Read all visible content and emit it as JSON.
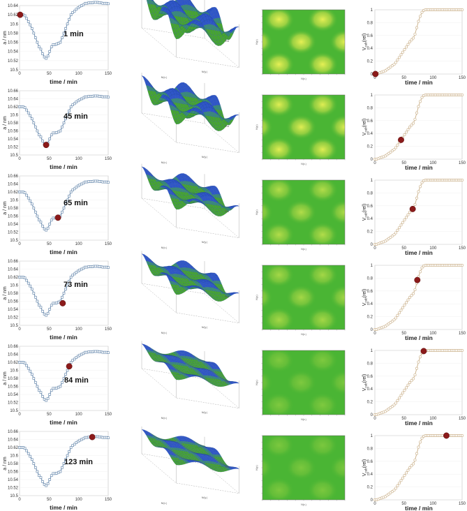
{
  "colors": {
    "lattice_line": "#5b7fa6",
    "volume_line": "#c8ad85",
    "marker": "#8b1a1a",
    "surface_green": "#46a52f",
    "surface_blue": "#2f56c8",
    "map_green": "#4ab534",
    "map_yellow": "#e6f055"
  },
  "labels": {
    "lattice_ylabel": "a / nm",
    "lattice_xlabel": "time / min",
    "volume_ylabel": "V",
    "volume_ylabel_sub": "cub",
    "volume_ylabel_tail": "(rel)",
    "volume_xlabel": "time / min",
    "surface_axis_x": "N/(x.)",
    "surface_axis_y": "N/(y.)",
    "surface_axis_z": "Φ/a",
    "map_axis_x": "N(x.)",
    "map_axis_y": "N(y.)"
  },
  "chart_data": [
    {
      "type": "line",
      "id": "lattice_parameter",
      "xlabel": "time / min",
      "ylabel": "a / nm",
      "xlim": [
        0,
        150
      ],
      "xticks": [
        0,
        50,
        100,
        150
      ],
      "ylim_rows": [
        [
          10.5,
          10.64
        ],
        [
          10.5,
          10.66
        ],
        [
          10.5,
          10.66
        ],
        [
          10.5,
          10.66
        ],
        [
          10.5,
          10.66
        ],
        [
          10.5,
          10.66
        ]
      ],
      "yticks_rows": [
        [
          "10.5",
          "10.52",
          "10.54",
          "10.56",
          "10.58",
          "10.6",
          "10.62",
          "10.64"
        ],
        [
          "10.5",
          "10.52",
          "10.54",
          "10.56",
          "10.58",
          "10.6",
          "10.62",
          "10.64",
          "10.66"
        ],
        [
          "10.5",
          "10.52",
          "10.54",
          "10.56",
          "10.58",
          "10.6",
          "10.62",
          "10.64",
          "10.66"
        ],
        [
          "10.5",
          "10.52",
          "10.54",
          "10.56",
          "10.58",
          "10.6",
          "10.62",
          "10.64",
          "10.66"
        ],
        [
          "10.5",
          "10.52",
          "10.54",
          "10.56",
          "10.58",
          "10.6",
          "10.62",
          "10.64",
          "10.66"
        ],
        [
          "10.5",
          "10.52",
          "10.54",
          "10.56",
          "10.58",
          "10.6",
          "10.62",
          "10.64",
          "10.66"
        ]
      ],
      "x": [
        0,
        3,
        6,
        9,
        12,
        15,
        18,
        21,
        24,
        27,
        30,
        33,
        36,
        39,
        42,
        45,
        48,
        51,
        54,
        57,
        60,
        63,
        66,
        69,
        72,
        75,
        78,
        81,
        84,
        87,
        90,
        93,
        96,
        99,
        102,
        105,
        108,
        111,
        114,
        117,
        120,
        123,
        126,
        129,
        132,
        135,
        138,
        141,
        144,
        147,
        150
      ],
      "y": [
        10.62,
        10.62,
        10.62,
        10.618,
        10.612,
        10.605,
        10.598,
        10.59,
        10.58,
        10.57,
        10.56,
        10.55,
        10.545,
        10.535,
        10.528,
        10.525,
        10.53,
        10.54,
        10.55,
        10.555,
        10.555,
        10.556,
        10.558,
        10.56,
        10.57,
        10.58,
        10.59,
        10.6,
        10.61,
        10.62,
        10.625,
        10.628,
        10.632,
        10.635,
        10.638,
        10.64,
        10.642,
        10.645,
        10.645,
        10.646,
        10.646,
        10.646,
        10.647,
        10.647,
        10.647,
        10.646,
        10.646,
        10.645,
        10.645,
        10.645,
        10.644
      ]
    },
    {
      "type": "scatter",
      "id": "current_time_markers",
      "points": [
        {
          "time_label": "1 min",
          "x": 1,
          "y_lattice": 10.62,
          "y_volume": 0.0
        },
        {
          "time_label": "45 min",
          "x": 45,
          "y_lattice": 10.525,
          "y_volume": 0.3
        },
        {
          "time_label": "65 min",
          "x": 65,
          "y_lattice": 10.556,
          "y_volume": 0.55
        },
        {
          "time_label": "73 min",
          "x": 73,
          "y_lattice": 10.555,
          "y_volume": 0.77
        },
        {
          "time_label": "84 min",
          "x": 84,
          "y_lattice": 10.61,
          "y_volume": 0.99
        },
        {
          "time_label": "123 min",
          "x": 123,
          "y_lattice": 10.646,
          "y_volume": 1.0
        }
      ]
    },
    {
      "type": "line",
      "id": "cubic_volume_fraction",
      "xlabel": "time / min",
      "ylabel": "V_cub(rel)",
      "xlim": [
        0,
        150
      ],
      "ylim": [
        0,
        1
      ],
      "xticks": [
        0,
        50,
        100,
        150
      ],
      "yticks": [
        "0",
        "0.2",
        "0.4",
        "0.6",
        "0.8",
        "1"
      ],
      "x": [
        0,
        3,
        6,
        9,
        12,
        15,
        18,
        21,
        24,
        27,
        30,
        33,
        36,
        39,
        42,
        45,
        48,
        51,
        54,
        57,
        60,
        63,
        66,
        69,
        72,
        75,
        78,
        81,
        84,
        87,
        90,
        93,
        96,
        99,
        102,
        105,
        108,
        111,
        114,
        117,
        120,
        123,
        126,
        129,
        132,
        135,
        138,
        141,
        144,
        147,
        150
      ],
      "y": [
        0.0,
        0.0,
        0.01,
        0.02,
        0.03,
        0.04,
        0.05,
        0.07,
        0.09,
        0.11,
        0.13,
        0.15,
        0.18,
        0.22,
        0.26,
        0.3,
        0.34,
        0.38,
        0.42,
        0.46,
        0.5,
        0.53,
        0.56,
        0.62,
        0.72,
        0.82,
        0.9,
        0.96,
        0.99,
        1.0,
        1.0,
        1.0,
        1.0,
        1.0,
        1.0,
        1.0,
        1.0,
        1.0,
        1.0,
        1.0,
        1.0,
        1.0,
        1.0,
        1.0,
        1.0,
        1.0,
        1.0,
        1.0,
        1.0,
        1.0,
        1.0
      ]
    },
    {
      "type": "heatmap",
      "id": "density_maps",
      "rows": [
        {
          "time_label": "1 min",
          "contrast": 1.0
        },
        {
          "time_label": "45 min",
          "contrast": 0.85
        },
        {
          "time_label": "65 min",
          "contrast": 0.55
        },
        {
          "time_label": "73 min",
          "contrast": 0.45
        },
        {
          "time_label": "84 min",
          "contrast": 0.2
        },
        {
          "time_label": "123 min",
          "contrast": 0.18
        }
      ]
    }
  ]
}
